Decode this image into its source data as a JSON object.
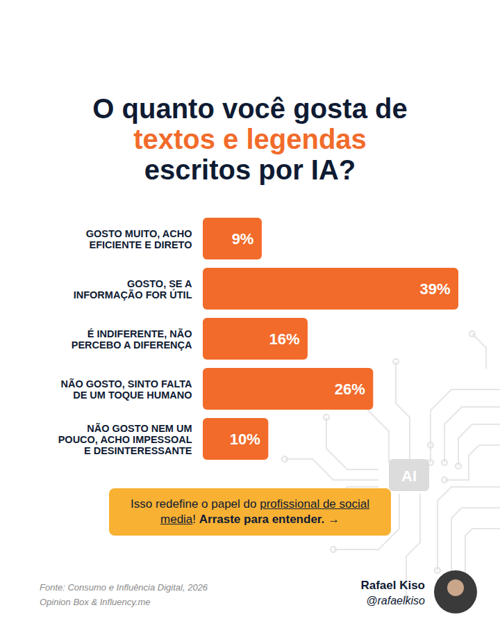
{
  "chart_data": {
    "type": "bar",
    "orientation": "horizontal",
    "title": "O quanto você gosta de textos e legendas escritos por IA?",
    "title_highlight": "textos e legendas",
    "categories": [
      "GOSTO MUITO, ACHO EFICIENTE E DIRETO",
      "GOSTO, SE A INFORMAÇÃO FOR ÚTIL",
      "É INDIFERENTE, NÃO PERCEBO A DIFERENÇA",
      "NÃO GOSTO, SINTO FALTA DE UM TOQUE HUMANO",
      "NÃO GOSTO NEM UM POUCO, ACHO IMPESSOAL E DESINTERESSANTE"
    ],
    "values": [
      9,
      39,
      16,
      26,
      10
    ],
    "value_labels": [
      "9%",
      "39%",
      "16%",
      "26%",
      "10%"
    ],
    "data_labels": true,
    "tick_labels": "y",
    "grid": false,
    "color": "#f26b2a",
    "callout": [
      {
        "text": "Isso redefine o papel do "
      },
      {
        "text": "profissional de social media",
        "style": "underline"
      },
      {
        "text": "! "
      },
      {
        "text": "Arraste para entender. →",
        "style": "bold"
      }
    ],
    "source": [
      "Fonte: Consumo e Influência Digital, 2026",
      "Opinion Box & Influency.me"
    ],
    "author": {
      "name": "Rafael Kiso",
      "handle": "@rafaelkiso"
    },
    "watermark": "AI"
  }
}
